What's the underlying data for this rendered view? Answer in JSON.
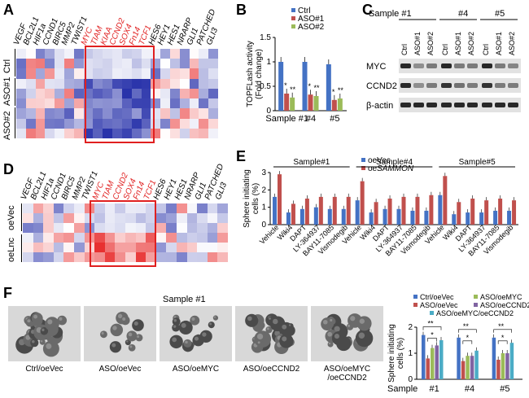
{
  "panels": {
    "A": "A",
    "B": "B",
    "C": "C",
    "D": "D",
    "E": "E",
    "F": "F"
  },
  "heatmap_a": {
    "genes_black_left": [
      "VEGF",
      "BCL2L1",
      "HIF1a",
      "CCND1",
      "BIRC5",
      "MMP2",
      "TWIST1"
    ],
    "genes_red": [
      "MYC",
      "TIAM",
      "KIAA",
      "CCND2",
      "SOX4",
      "Fn14",
      "TCF1"
    ],
    "genes_black_right": [
      "HES6",
      "HEY1",
      "HES1",
      "NRARP",
      "GLI1",
      "PATCHED",
      "GLI3"
    ],
    "row_groups": [
      "Ctrl",
      "ASO#1",
      "ASO#2"
    ]
  },
  "heatmap_d": {
    "genes_black_left": [
      "VEGF",
      "BCL2L1",
      "HIF1a",
      "CCND1",
      "BIRC5",
      "MMP2",
      "TWIST1"
    ],
    "genes_red": [
      "MYC",
      "TIAM",
      "CCND2",
      "SOX4",
      "Fn14",
      "TCF1"
    ],
    "genes_black_right": [
      "HES6",
      "HEY1",
      "HES1",
      "NRARP",
      "GLI1",
      "PATCHED",
      "GLI3"
    ],
    "row_groups": [
      "oeVec",
      "oeLnc"
    ]
  },
  "panel_b": {
    "legend": [
      "Ctrl",
      "ASO#1",
      "ASO#2"
    ],
    "colors": [
      "#4472c4",
      "#c0504d",
      "#9bbb59"
    ],
    "ylabel_1": "TOPFLash activity",
    "ylabel_2": "(Fold change)",
    "yticks": [
      "0",
      "0.5",
      "1",
      "1.5"
    ],
    "sig": [
      "*",
      "**"
    ],
    "chart_data": {
      "type": "bar",
      "categories": [
        "Sample #1",
        "#4",
        "#5"
      ],
      "series": [
        {
          "name": "Ctrl",
          "values": [
            1.0,
            1.0,
            0.95
          ]
        },
        {
          "name": "ASO#1",
          "values": [
            0.35,
            0.33,
            0.22
          ]
        },
        {
          "name": "ASO#2",
          "values": [
            0.27,
            0.3,
            0.25
          ]
        }
      ],
      "ylim": [
        0,
        1.5
      ],
      "ylabel": "TOPFLash activity (Fold change)"
    }
  },
  "panel_c": {
    "samples": [
      "Sample #1",
      "#4",
      "#5"
    ],
    "lanes": [
      "Ctrl",
      "ASO#1",
      "ASO#2",
      "Ctrl",
      "ASO#1",
      "ASO#2",
      "Ctrl",
      "ASO#1",
      "ASO#2"
    ],
    "proteins": [
      "MYC",
      "CCND2",
      "β-actin"
    ]
  },
  "panel_e": {
    "legend": [
      "oeVec",
      "oeSAMMON"
    ],
    "legend_prefix": "oe",
    "legend_italic": "SAMMON",
    "colors": [
      "#4472c4",
      "#c0504d"
    ],
    "ylabel_1": "Sphere initiating",
    "ylabel_2": "cells (%)",
    "yticks": [
      "0",
      "1",
      "2",
      "3"
    ],
    "group_labels": [
      "Sample#1",
      "Sample#4",
      "Sample#5"
    ],
    "conditions": [
      "Vehicle",
      "Wiki4",
      "DAPT",
      "LY-364937",
      "BAY11-7085",
      "Vismodegib"
    ],
    "chart_data": {
      "type": "bar",
      "categories": [
        "Vehicle",
        "Wiki4",
        "DAPT",
        "LY-364937",
        "BAY11-7085",
        "Vismodegib"
      ],
      "groups": [
        "Sample#1",
        "Sample#4",
        "Sample#5"
      ],
      "series": [
        {
          "name": "oeVec",
          "values": [
            [
              1.6,
              0.7,
              0.9,
              1.0,
              0.9,
              0.9
            ],
            [
              1.4,
              0.7,
              0.9,
              0.9,
              0.8,
              0.8
            ],
            [
              1.7,
              0.6,
              0.7,
              0.7,
              0.8,
              0.8
            ]
          ]
        },
        {
          "name": "oeSAMMON",
          "values": [
            [
              2.9,
              1.2,
              1.5,
              1.6,
              1.6,
              1.6
            ],
            [
              2.5,
              1.3,
              1.5,
              1.6,
              1.6,
              1.7
            ],
            [
              2.8,
              1.3,
              1.5,
              1.4,
              1.5,
              1.4
            ]
          ]
        }
      ],
      "ylim": [
        0,
        3
      ],
      "ylabel": "Sphere initiating cells (%)"
    }
  },
  "panel_f": {
    "sample_title": "Sample #1",
    "images": [
      "Ctrl/oeVec",
      "ASO/oeVec",
      "ASO/oeMYC",
      "ASO/oeCCND2",
      "ASO/oeMYC\n/oeCCND2"
    ],
    "image_caption_5a": "ASO/oeMYC",
    "image_caption_5b": "/oeCCND2",
    "legend": [
      "Ctrl/oeVec",
      "ASO/oeMYC",
      "ASO/oeVec",
      "ASO/oeCCND2",
      "ASO/oeMYC/oeCCND2"
    ],
    "legend_colors": [
      "#4472c4",
      "#9bbb59",
      "#c0504d",
      "#8064a2",
      "#4bacc6"
    ],
    "ylabel_1": "Sphere initiating",
    "ylabel_2": "cells (%)",
    "xlabel": "Sample",
    "yticks": [
      "0",
      "1",
      "2"
    ],
    "sig": [
      "**",
      "*"
    ],
    "chart_data": {
      "type": "bar",
      "categories": [
        "#1",
        "#4",
        "#5"
      ],
      "series": [
        {
          "name": "Ctrl/oeVec",
          "values": [
            1.7,
            1.6,
            1.6
          ]
        },
        {
          "name": "ASO/oeVec",
          "values": [
            0.8,
            0.7,
            0.75
          ]
        },
        {
          "name": "ASO/oeMYC",
          "values": [
            1.2,
            0.9,
            1.0
          ]
        },
        {
          "name": "ASO/oeCCND2",
          "values": [
            1.3,
            0.9,
            1.0
          ]
        },
        {
          "name": "ASO/oeMYC/oeCCND2",
          "values": [
            1.5,
            1.1,
            1.4
          ]
        }
      ],
      "ylim": [
        0,
        2
      ],
      "ylabel": "Sphere initiating cells (%)",
      "xlabel": "Sample"
    }
  }
}
